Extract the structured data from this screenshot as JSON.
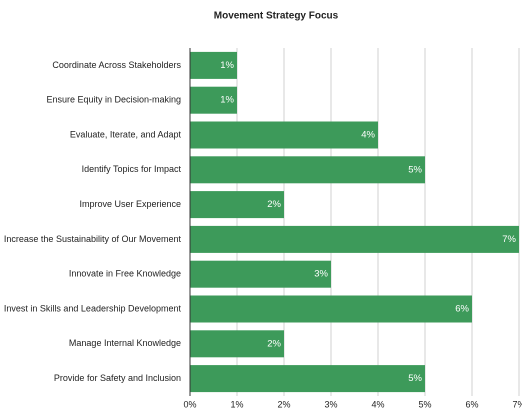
{
  "chart_data": {
    "type": "bar",
    "orientation": "horizontal",
    "title": "Movement Strategy Focus",
    "categories": [
      "Coordinate Across Stakeholders",
      "Ensure Equity in Decision-making",
      "Evaluate, Iterate, and Adapt",
      "Identify Topics for Impact",
      "Improve User Experience",
      "Increase the Sustainability of Our Movement",
      "Innovate in Free Knowledge",
      "Invest in Skills and Leadership Development",
      "Manage Internal Knowledge",
      "Provide for Safety and Inclusion"
    ],
    "values": [
      1,
      1,
      4,
      5,
      2,
      7,
      3,
      6,
      2,
      5
    ],
    "value_labels": [
      "1%",
      "1%",
      "4%",
      "5%",
      "2%",
      "7%",
      "3%",
      "6%",
      "2%",
      "5%"
    ],
    "color": "#3d9a5a",
    "xlim": [
      0,
      7
    ],
    "xticks": [
      {
        "value": 0,
        "label": "0%"
      },
      {
        "value": 1,
        "label": "1%"
      },
      {
        "value": 2,
        "label": "2%"
      },
      {
        "value": 3,
        "label": "3%"
      },
      {
        "value": 4,
        "label": "4%"
      },
      {
        "value": 5,
        "label": "5%"
      },
      {
        "value": 6,
        "label": "6%"
      },
      {
        "value": 7,
        "label": "7%"
      }
    ],
    "grid": true
  }
}
